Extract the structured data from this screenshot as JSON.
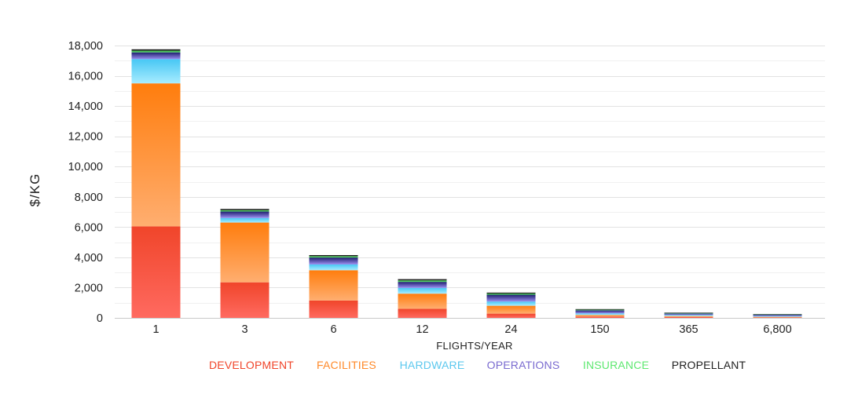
{
  "chart_data": {
    "type": "bar",
    "stacked": true,
    "categories": [
      "1",
      "3",
      "6",
      "12",
      "24",
      "150",
      "365",
      "6,800"
    ],
    "xlabel": "FLIGHTS/YEAR",
    "ylabel": "$/KG",
    "ylim": [
      0,
      18000
    ],
    "y_ticks": [
      "0",
      "2,000",
      "4,000",
      "6,000",
      "8,000",
      "10,000",
      "12,000",
      "14,000",
      "16,000",
      "18,000"
    ],
    "y_tick_values": [
      0,
      2000,
      4000,
      6000,
      8000,
      10000,
      12000,
      14000,
      16000,
      18000
    ],
    "grid": true,
    "legend_position": "bottom",
    "series": [
      {
        "name": "DEVELOPMENT",
        "color": "#f0452a",
        "top": "#f0452a",
        "bottom": "#ff6a60",
        "values": [
          6050,
          2350,
          1150,
          600,
          280,
          90,
          60,
          30
        ]
      },
      {
        "name": "FACILITIES",
        "color": "#ff8a2a",
        "top": "#ff7d0d",
        "bottom": "#ffae70",
        "values": [
          9450,
          3950,
          2000,
          1000,
          520,
          100,
          60,
          40
        ]
      },
      {
        "name": "HARDWARE",
        "color": "#5cc8ee",
        "top": "#47c7f4",
        "bottom": "#a8ecff",
        "values": [
          1600,
          300,
          380,
          380,
          280,
          110,
          70,
          50
        ]
      },
      {
        "name": "OPERATIONS",
        "color": "#7a6bd0",
        "top": "#1e1f6e",
        "bottom": "#9a8ef0",
        "values": [
          450,
          430,
          460,
          400,
          450,
          200,
          100,
          90
        ]
      },
      {
        "name": "INSURANCE",
        "color": "#5ee870",
        "top": "#2c9a3c",
        "bottom": "#5ee870",
        "values": [
          110,
          90,
          90,
          100,
          80,
          40,
          30,
          20
        ]
      },
      {
        "name": "PROPELLANT",
        "color": "#222222",
        "top": "#111111",
        "bottom": "#333333",
        "values": [
          90,
          80,
          70,
          80,
          60,
          40,
          30,
          20
        ]
      }
    ]
  }
}
